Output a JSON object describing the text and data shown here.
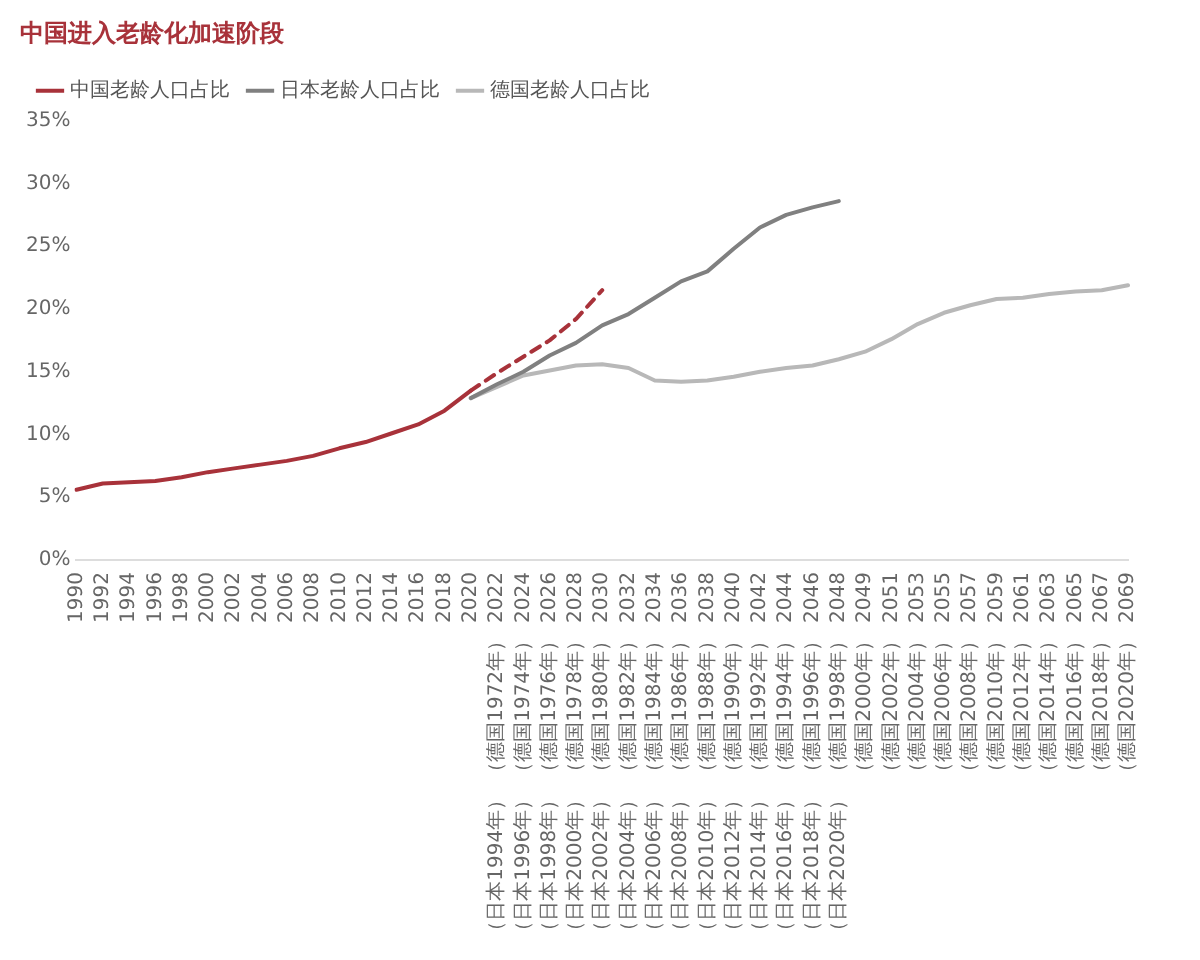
{
  "chart_data": {
    "type": "line",
    "title": "中国进入老龄化加速阶段",
    "categories": [
      "1990",
      "1992",
      "1994",
      "1996",
      "1998",
      "2000",
      "2002",
      "2004",
      "2006",
      "2008",
      "2010",
      "2012",
      "2014",
      "2016",
      "2018",
      "2020",
      "2022 （德国1972年） （日本1994年）",
      "2024 （德国1974年） （日本1996年）",
      "2026 （德国1976年） （日本1998年）",
      "2028 （德国1978年） （日本2000年）",
      "2030 （德国1980年） （日本2002年）",
      "2032 （德国1982年） （日本2004年）",
      "2034 （德国1984年） （日本2006年）",
      "2036 （德国1986年） （日本2008年）",
      "2038 （德国1988年） （日本2010年）",
      "2040 （德国1990年） （日本2012年）",
      "2042 （德国1992年） （日本2014年）",
      "2044 （德国1994年） （日本2016年）",
      "2046 （德国1996年） （日本2018年）",
      "2048 （德国1998年） （日本2020年）",
      "2049 （德国2000年）",
      "2051 （德国2002年）",
      "2053 （德国2004年）",
      "2055 （德国2006年）",
      "2057 （德国2008年）",
      "2059 （德国2010年）",
      "2061 （德国2012年）",
      "2063 （德国2014年）",
      "2065 （德国2016年）",
      "2067 （德国2018年）",
      "2069 （德国2020年）"
    ],
    "series": [
      {
        "name": "中国老龄人口占比",
        "color": "#a8323a",
        "line_style": "solid",
        "values": [
          5.6,
          6.1,
          6.2,
          6.3,
          6.6,
          7.0,
          7.3,
          7.6,
          7.9,
          8.3,
          8.9,
          9.4,
          10.1,
          10.8,
          11.9,
          13.5,
          null,
          null,
          null,
          null,
          null,
          null,
          null,
          null,
          null,
          null,
          null,
          null,
          null,
          null,
          null,
          null,
          null,
          null,
          null,
          null,
          null,
          null,
          null,
          null,
          null
        ]
      },
      {
        "color": "#a8323a",
        "line_style": "dashed",
        "values": [
          null,
          null,
          null,
          null,
          null,
          null,
          null,
          null,
          null,
          null,
          null,
          null,
          null,
          null,
          null,
          13.5,
          14.9,
          16.2,
          17.5,
          19.2,
          21.5,
          null,
          null,
          null,
          null,
          null,
          null,
          null,
          null,
          null,
          null,
          null,
          null,
          null,
          null,
          null,
          null,
          null,
          null,
          null,
          null
        ]
      },
      {
        "name": "日本老龄人口占比",
        "color": "#808080",
        "line_style": "solid",
        "values": [
          null,
          null,
          null,
          null,
          null,
          null,
          null,
          null,
          null,
          null,
          null,
          null,
          null,
          null,
          null,
          12.9,
          14.0,
          15.0,
          16.3,
          17.3,
          18.7,
          19.6,
          20.9,
          22.2,
          23.0,
          24.8,
          26.5,
          27.5,
          28.1,
          28.6,
          null,
          null,
          null,
          null,
          null,
          null,
          null,
          null,
          null,
          null,
          null
        ]
      },
      {
        "name": "德国老龄人口占比",
        "color": "#b8b8b8",
        "line_style": "solid",
        "values": [
          null,
          null,
          null,
          null,
          null,
          null,
          null,
          null,
          null,
          null,
          null,
          null,
          null,
          null,
          null,
          12.9,
          13.8,
          14.7,
          15.1,
          15.5,
          15.6,
          15.3,
          14.3,
          14.2,
          14.3,
          14.6,
          15.0,
          15.3,
          15.5,
          16.0,
          16.6,
          17.6,
          18.8,
          19.7,
          20.3,
          20.8,
          20.9,
          21.2,
          21.4,
          21.5,
          21.9
        ]
      }
    ],
    "ylim": [
      0,
      35
    ],
    "yticks": [
      {
        "value": 0,
        "label": "0%"
      },
      {
        "value": 5,
        "label": "5%"
      },
      {
        "value": 10,
        "label": "10%"
      },
      {
        "value": 15,
        "label": "15%"
      },
      {
        "value": 20,
        "label": "20%"
      },
      {
        "value": 25,
        "label": "25%"
      },
      {
        "value": 30,
        "label": "30%"
      },
      {
        "value": 35,
        "label": "35%"
      }
    ],
    "grid": false,
    "legend": "top",
    "marker": "none"
  }
}
